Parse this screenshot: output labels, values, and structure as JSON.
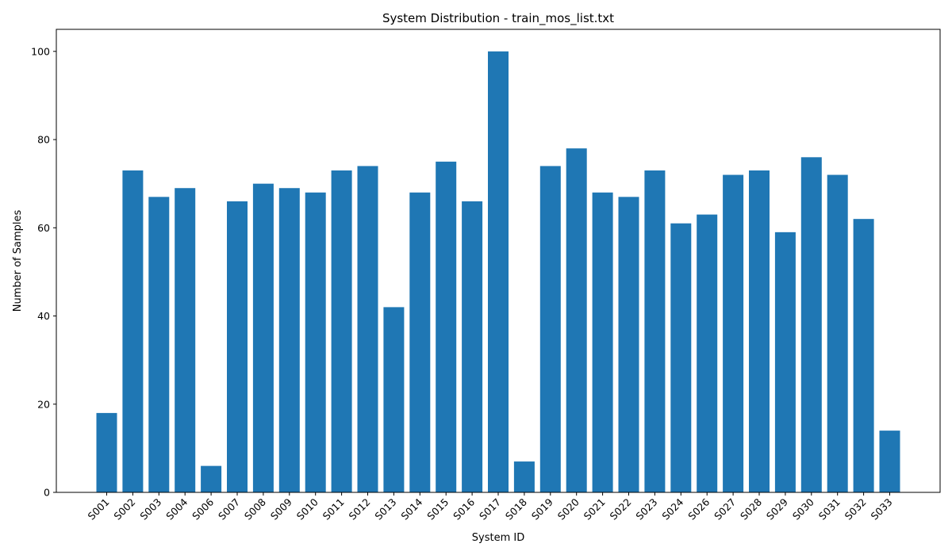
{
  "chart_data": {
    "type": "bar",
    "title": "System Distribution - train_mos_list.txt",
    "xlabel": "System ID",
    "ylabel": "Number of Samples",
    "categories": [
      "S001",
      "S002",
      "S003",
      "S004",
      "S006",
      "S007",
      "S008",
      "S009",
      "S010",
      "S011",
      "S012",
      "S013",
      "S014",
      "S015",
      "S016",
      "S017",
      "S018",
      "S019",
      "S020",
      "S021",
      "S022",
      "S023",
      "S024",
      "S026",
      "S027",
      "S028",
      "S029",
      "S030",
      "S031",
      "S032",
      "S033"
    ],
    "values": [
      18,
      73,
      67,
      69,
      6,
      66,
      70,
      69,
      68,
      73,
      74,
      42,
      68,
      75,
      66,
      100,
      7,
      74,
      78,
      68,
      67,
      73,
      61,
      63,
      72,
      73,
      59,
      76,
      72,
      62,
      14
    ],
    "ylim": [
      0,
      105
    ],
    "yticks": [
      0,
      20,
      40,
      60,
      80,
      100
    ],
    "bar_color": "#1f77b4",
    "grid": false,
    "xtick_rotation": "45"
  }
}
